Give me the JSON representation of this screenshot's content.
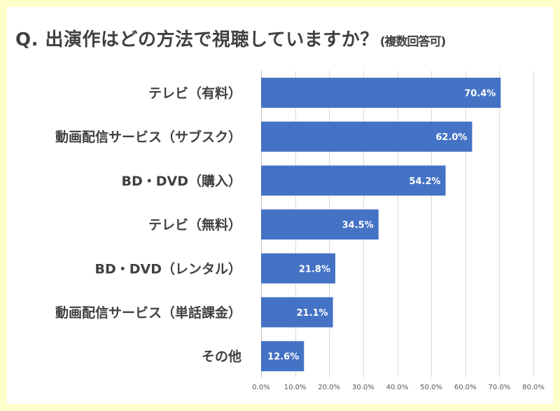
{
  "colors": {
    "background": "#FFFFCC",
    "bar": "#4472C4",
    "text": "#404040",
    "grid": "#D9D9D9"
  },
  "chart_data": {
    "type": "bar",
    "orientation": "horizontal",
    "title": "Q. 出演作はどの方法で視聴していますか？",
    "subtitle": "(複数回答可)",
    "categories": [
      "テレビ（有料）",
      "動画配信サービス（サブスク）",
      "BD・DVD（購入）",
      "テレビ（無料）",
      "BD・DVD（レンタル）",
      "動画配信サービス（単話課金）",
      "その他"
    ],
    "values": [
      70.4,
      62.0,
      54.2,
      34.5,
      21.8,
      21.1,
      12.6
    ],
    "data_labels": [
      "70.4%",
      "62.0%",
      "54.2%",
      "34.5%",
      "21.8%",
      "21.1%",
      "12.6%"
    ],
    "xlabel": "",
    "ylabel": "",
    "xlim": [
      0,
      80
    ],
    "xticks": [
      0,
      10,
      20,
      30,
      40,
      50,
      60,
      70,
      80
    ],
    "xtick_labels": [
      "0.0%",
      "10.0%",
      "20.0%",
      "30.0%",
      "40.0%",
      "50.0%",
      "60.0%",
      "70.0%",
      "80.0%"
    ],
    "grid": true,
    "legend": "none"
  }
}
